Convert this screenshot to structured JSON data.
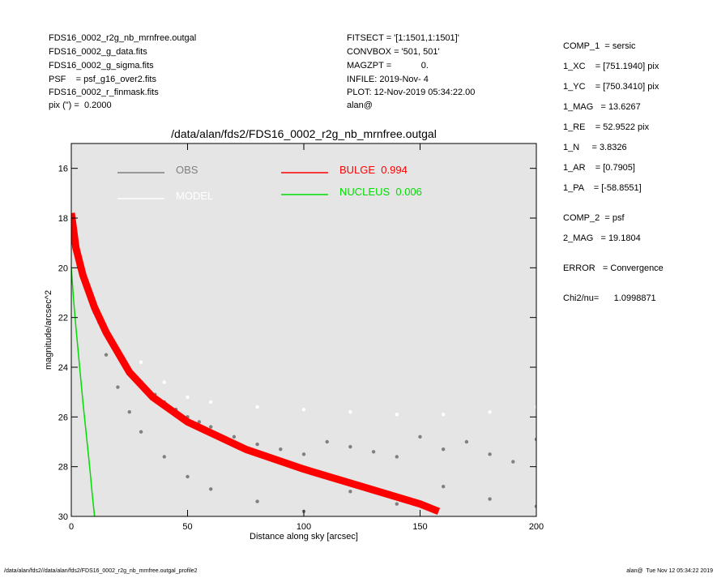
{
  "header_left": [
    "FDS16_0002_r2g_nb_mrnfree.outgal",
    "FDS16_0002_g_data.fits",
    "FDS16_0002_g_sigma.fits",
    "PSF    = psf_g16_over2.fits",
    "FDS16_0002_r_finmask.fits",
    "pix (\") =  0.2000"
  ],
  "header_mid": [
    "FITSECT = '[1:1501,1:1501]'",
    "CONVBOX = '501, 501'",
    "MAGZPT =            0.",
    "INFILE: 2019-Nov- 4",
    "PLOT: 12-Nov-2019 05:34:22.00",
    "alan@"
  ],
  "params": [
    "COMP_1  = sersic",
    "1_XC    = [751.1940] pix",
    "1_YC    = [750.3410] pix",
    "1_MAG   = 13.6267",
    "1_RE    = 52.9522 pix",
    "1_N     = 3.8326",
    "1_AR    = [0.7905]",
    "1_PA    = [-58.8551]",
    "COMP_2  = psf",
    "2_MAG   = 19.1804",
    "ERROR   = Convergence",
    "Chi2/nu=      1.0998871"
  ],
  "footer_left": "/data/alan/fds2//data/alan/fds2/FDS16_0002_r2g_nb_mrnfree.outgal_profile2",
  "footer_right": "alan@  Tue Nov 12 05:34:22 2019",
  "chart_data": {
    "type": "scatter",
    "title": "/data/alan/fds2/FDS16_0002_r2g_nb_mrnfree.outgal",
    "x_label": "Distance along sky [arcsec]",
    "y_label": "magnitude/arcsec^2",
    "xlim": [
      0,
      200
    ],
    "ylim": [
      30,
      15
    ],
    "xticks": [
      0,
      50,
      100,
      150,
      200
    ],
    "yticks": [
      16,
      18,
      20,
      22,
      24,
      26,
      28,
      30
    ],
    "background": "#e5e5e5",
    "series": [
      {
        "name": "OBS",
        "color": "#808080",
        "kind": "points",
        "x": [
          1,
          3,
          5,
          8,
          10,
          12,
          15,
          18,
          20,
          22,
          25,
          28,
          30,
          33,
          36,
          40,
          45,
          50,
          55,
          60,
          70,
          80,
          90,
          100,
          110,
          120,
          130,
          140,
          150,
          160,
          170,
          180,
          190,
          200,
          15,
          20,
          25,
          30,
          40,
          50,
          60,
          80,
          100,
          120,
          140,
          160,
          180,
          200
        ],
        "values": [
          18.5,
          19.9,
          20.4,
          21.3,
          21.8,
          22.2,
          22.7,
          23.1,
          23.4,
          23.7,
          24.1,
          24.4,
          24.6,
          24.9,
          25.1,
          25.4,
          25.7,
          26.0,
          26.2,
          26.4,
          26.8,
          27.1,
          27.3,
          27.5,
          27.0,
          27.2,
          27.4,
          27.6,
          26.8,
          27.3,
          27.0,
          27.5,
          27.8,
          26.9,
          23.5,
          24.8,
          25.8,
          26.6,
          27.6,
          28.4,
          28.9,
          29.4,
          29.8,
          29.0,
          29.5,
          28.8,
          29.3,
          29.6
        ]
      },
      {
        "name": "MODEL",
        "color": "#ffffff",
        "kind": "points",
        "x": [
          30,
          40,
          50,
          60,
          80,
          100,
          120,
          140,
          160,
          180,
          200
        ],
        "values": [
          23.8,
          24.6,
          25.2,
          25.4,
          25.6,
          25.7,
          25.8,
          25.9,
          25.9,
          25.8,
          25.6
        ]
      },
      {
        "name": "BULGE  0.994",
        "color": "#ff0000",
        "kind": "band",
        "x": [
          0,
          2,
          5,
          10,
          15,
          25,
          35,
          50,
          75,
          100,
          125,
          150,
          158
        ],
        "values": [
          17.8,
          19.2,
          20.3,
          21.6,
          22.6,
          24.2,
          25.2,
          26.2,
          27.3,
          28.1,
          28.8,
          29.5,
          29.8
        ]
      },
      {
        "name": "NUCLEUS  0.006",
        "color": "#00dd00",
        "kind": "line",
        "x": [
          0,
          1,
          2,
          3,
          4,
          5,
          6,
          7,
          8,
          9,
          10
        ],
        "values": [
          20,
          21.3,
          22.4,
          23.4,
          24.4,
          25.4,
          26.3,
          27.2,
          28.1,
          29.1,
          30
        ]
      }
    ]
  }
}
